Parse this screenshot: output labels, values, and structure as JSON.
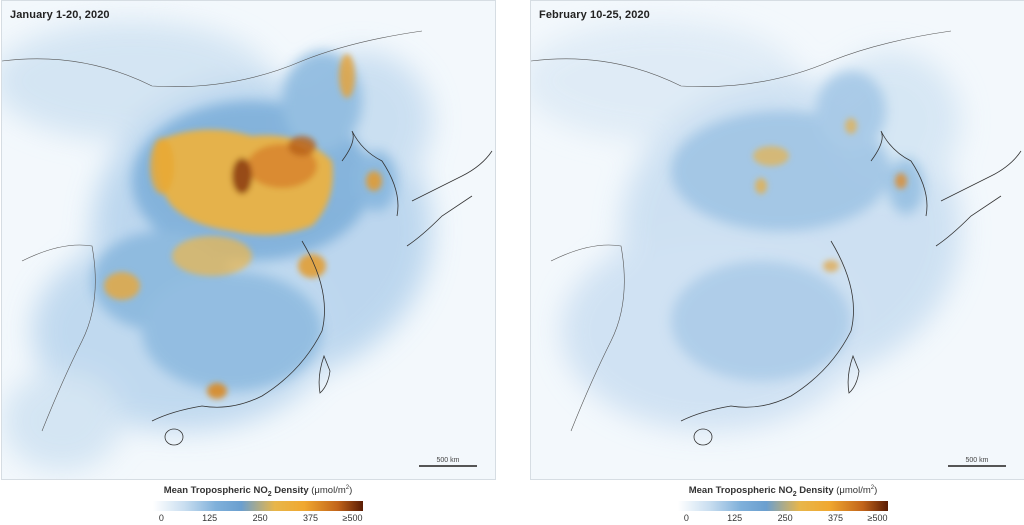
{
  "left_panel": {
    "title": "January 1-20, 2020",
    "scale_label": "500 km"
  },
  "right_panel": {
    "title": "February 10-25, 2020",
    "scale_label": "500 km"
  },
  "legend": {
    "title_prefix": "Mean Tropospheric NO",
    "title_subscript": "2",
    "title_suffix": " Density ",
    "units_prefix": "(μmol/m",
    "units_superscript": "2",
    "units_suffix": ")",
    "ticks": [
      "0",
      "125",
      "250",
      "375",
      "≥500"
    ]
  },
  "colors": {
    "ocean": "#f3f8fc",
    "low": "#7fb0da",
    "mid": "#6b9fcf",
    "high": "#f0a830",
    "very_high": "#5a1c05"
  }
}
